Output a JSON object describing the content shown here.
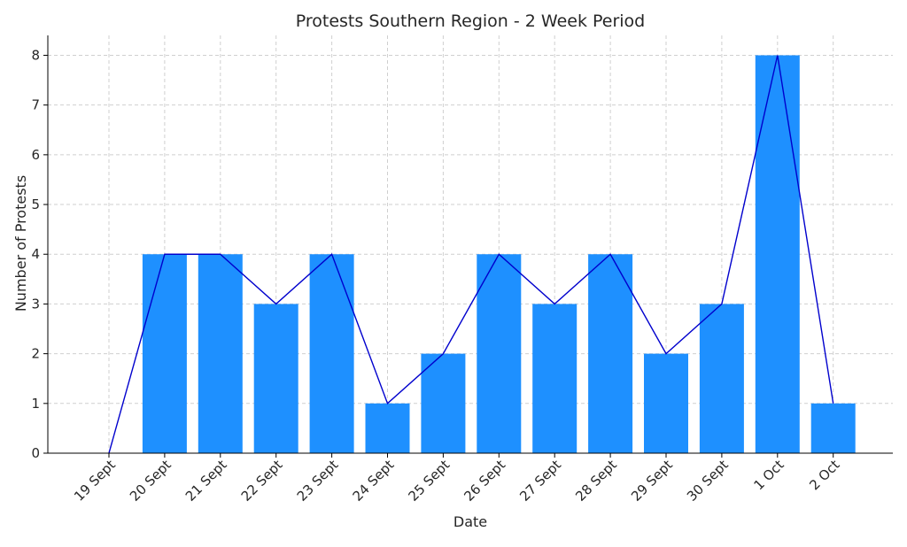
{
  "chart_data": {
    "type": "bar",
    "title": "Protests Southern Region - 2 Week Period",
    "xlabel": "Date",
    "ylabel": "Number of Protests",
    "categories": [
      "19 Sept",
      "20 Sept",
      "21 Sept",
      "22 Sept",
      "23 Sept",
      "24 Sept",
      "25 Sept",
      "26 Sept",
      "27 Sept",
      "28 Sept",
      "29 Sept",
      "30 Sept",
      "1 Oct",
      "2 Oct"
    ],
    "series": [
      {
        "type": "bar",
        "values": [
          0,
          4,
          4,
          3,
          4,
          1,
          2,
          4,
          3,
          4,
          2,
          3,
          8,
          1
        ],
        "color": "#1e90ff"
      },
      {
        "type": "line",
        "values": [
          0,
          4,
          4,
          3,
          4,
          1,
          2,
          4,
          3,
          4,
          2,
          3,
          8,
          1
        ],
        "color": "#0000cd"
      }
    ],
    "yticks": [
      0,
      1,
      2,
      3,
      4,
      5,
      6,
      7,
      8
    ],
    "ylim": [
      0,
      8.4
    ],
    "grid": true,
    "legend": "none"
  }
}
